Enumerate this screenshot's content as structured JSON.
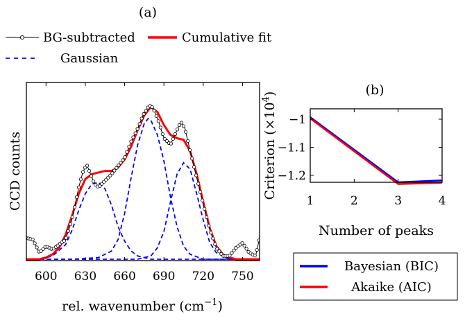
{
  "chart_data": [
    {
      "panel": "(a)",
      "type": "line",
      "xlabel": "rel. wavenumber (cm⁻¹)",
      "ylabel": "CCD counts",
      "xlim": [
        585,
        763
      ],
      "ylim": [
        0,
        1.0
      ],
      "xticks": [
        600,
        630,
        660,
        690,
        720,
        750
      ],
      "legend": {
        "placement": "top",
        "entries": [
          {
            "name": "BG-subtracted",
            "style": "line-circle-markers",
            "color": "#000000"
          },
          {
            "name": "Cumulative fit",
            "style": "thick-line",
            "color": "#ff0000"
          },
          {
            "name": "Gaussian",
            "style": "dashed",
            "color": "#0000ff"
          }
        ]
      },
      "series": [
        {
          "name": "BG-subtracted",
          "color": "#000000",
          "x": [
            585,
            590,
            595,
            600,
            605,
            610,
            615,
            620,
            625,
            628,
            631,
            634,
            637,
            640,
            645,
            650,
            655,
            660,
            665,
            670,
            674,
            678,
            680,
            682,
            686,
            690,
            695,
            700,
            703,
            706,
            710,
            715,
            720,
            725,
            730,
            735,
            740,
            745,
            750,
            755,
            760,
            763
          ],
          "y": [
            0.13,
            0.12,
            0.04,
            0.08,
            0.06,
            0.09,
            0.12,
            0.25,
            0.44,
            0.53,
            0.58,
            0.52,
            0.46,
            0.44,
            0.48,
            0.52,
            0.57,
            0.62,
            0.72,
            0.8,
            0.88,
            0.93,
            0.94,
            0.92,
            0.84,
            0.74,
            0.7,
            0.79,
            0.84,
            0.8,
            0.66,
            0.5,
            0.34,
            0.18,
            0.07,
            0.02,
            0.02,
            0.07,
            0.1,
            0.04,
            0.02,
            0.13
          ]
        },
        {
          "name": "Cumulative fit",
          "color": "#ff0000",
          "x": [
            585,
            590,
            595,
            600,
            605,
            610,
            615,
            620,
            625,
            630,
            635,
            640,
            645,
            650,
            655,
            660,
            665,
            670,
            675,
            680,
            685,
            690,
            695,
            700,
            705,
            710,
            715,
            720,
            725,
            730,
            735,
            740,
            745,
            750,
            755,
            760,
            763
          ],
          "y": [
            0.0,
            0.0,
            0.0,
            0.01,
            0.03,
            0.07,
            0.15,
            0.27,
            0.4,
            0.49,
            0.52,
            0.53,
            0.54,
            0.54,
            0.56,
            0.61,
            0.69,
            0.79,
            0.88,
            0.93,
            0.9,
            0.82,
            0.76,
            0.74,
            0.73,
            0.66,
            0.52,
            0.35,
            0.19,
            0.08,
            0.03,
            0.01,
            0.0,
            0.0,
            0.0,
            0.0,
            0.0
          ]
        },
        {
          "name": "Gaussian 1",
          "color": "#0000ff",
          "dashed": true,
          "x": [
            585,
            595,
            605,
            615,
            620,
            625,
            630,
            635,
            640,
            645,
            650,
            655,
            660,
            665,
            670,
            680,
            690,
            700,
            763
          ],
          "y": [
            0.0,
            0.0,
            0.02,
            0.09,
            0.18,
            0.3,
            0.4,
            0.46,
            0.47,
            0.43,
            0.33,
            0.2,
            0.11,
            0.05,
            0.02,
            0.0,
            0.0,
            0.0,
            0.0
          ]
        },
        {
          "name": "Gaussian 2",
          "color": "#0000ff",
          "dashed": true,
          "x": [
            585,
            620,
            640,
            650,
            655,
            660,
            665,
            670,
            675,
            678,
            680,
            685,
            690,
            695,
            700,
            705,
            710,
            720,
            763
          ],
          "y": [
            0.0,
            0.0,
            0.01,
            0.05,
            0.12,
            0.28,
            0.5,
            0.7,
            0.83,
            0.86,
            0.85,
            0.76,
            0.6,
            0.38,
            0.2,
            0.08,
            0.03,
            0.0,
            0.0
          ]
        },
        {
          "name": "Gaussian 3",
          "color": "#0000ff",
          "dashed": true,
          "x": [
            585,
            670,
            680,
            685,
            690,
            695,
            700,
            705,
            710,
            715,
            720,
            725,
            730,
            740,
            763
          ],
          "y": [
            0.0,
            0.0,
            0.02,
            0.07,
            0.17,
            0.35,
            0.52,
            0.59,
            0.55,
            0.4,
            0.24,
            0.1,
            0.04,
            0.0,
            0.0
          ]
        }
      ]
    },
    {
      "panel": "(b)",
      "type": "line",
      "xlabel": "Number of peaks",
      "ylabel": "Criterion (×10⁴)",
      "ylabel_parts": [
        "Criterion (",
        "×10",
        "4",
        ")"
      ],
      "xlim": [
        1,
        4
      ],
      "ylim": [
        -1.26,
        -0.96
      ],
      "xticks": [
        1,
        2,
        3,
        4
      ],
      "yticks": [
        -1,
        -1.1,
        -1.2
      ],
      "ytick_labels": [
        "−1",
        "−1.1",
        "−1.2"
      ],
      "legend": {
        "placement": "below",
        "entries": [
          {
            "name": "Bayesian (BIC)",
            "color": "#0000ff"
          },
          {
            "name": "Akaike (AIC)",
            "color": "#ff0000"
          }
        ]
      },
      "series": [
        {
          "name": "Bayesian (BIC)",
          "color": "#0000ff",
          "x": [
            1,
            3,
            4
          ],
          "y": [
            -0.993,
            -1.225,
            -1.218
          ]
        },
        {
          "name": "Akaike (AIC)",
          "color": "#ff0000",
          "x": [
            1,
            3,
            4
          ],
          "y": [
            -0.997,
            -1.231,
            -1.226
          ]
        }
      ]
    }
  ]
}
